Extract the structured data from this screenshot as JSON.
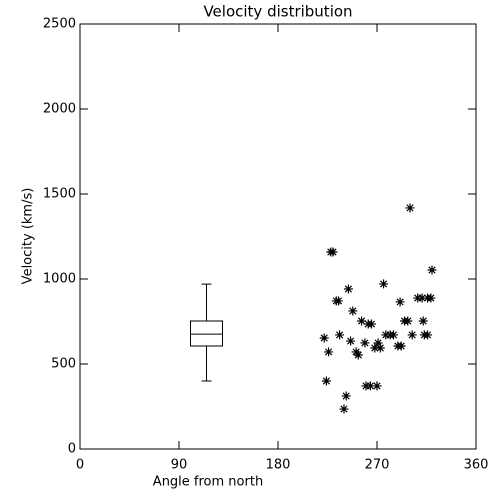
{
  "chart_data": {
    "type": "scatter",
    "title": "Velocity distribution",
    "x_label": "Angle from north",
    "y_label": "Velocity (km/s)",
    "xlim": [
      0,
      360
    ],
    "xticks": [
      0,
      90,
      180,
      270,
      360
    ],
    "ylim": [
      0,
      2500
    ],
    "yticks": [
      0,
      500,
      1000,
      1500,
      2000,
      2500
    ],
    "grid": false,
    "series": [
      {
        "color": "#000000",
        "marker": "asterisk",
        "x": [
          228,
          230,
          233,
          235,
          244,
          300,
          320,
          276,
          248,
          256,
          236,
          222,
          246,
          259,
          226,
          251,
          253,
          265,
          262,
          268,
          273,
          271,
          278,
          282,
          285,
          291,
          295,
          298,
          289,
          302,
          307,
          311,
          316,
          319,
          313,
          316,
          312,
          224,
          242,
          240,
          260,
          264,
          270,
          292
        ],
        "values": [
          1159,
          1159,
          871,
          871,
          941,
          1418,
          1053,
          971,
          812,
          753,
          671,
          653,
          635,
          624,
          571,
          571,
          553,
          735,
          735,
          594,
          594,
          624,
          671,
          671,
          671,
          865,
          753,
          753,
          606,
          671,
          888,
          888,
          888,
          888,
          671,
          671,
          753,
          400,
          312,
          235,
          371,
          371,
          371,
          606
        ]
      }
    ],
    "box": {
      "x": 115,
      "whisker_low": 400,
      "q1": 606,
      "median": 676,
      "q3": 753,
      "whisker_high": 970,
      "color": "#000000"
    }
  }
}
